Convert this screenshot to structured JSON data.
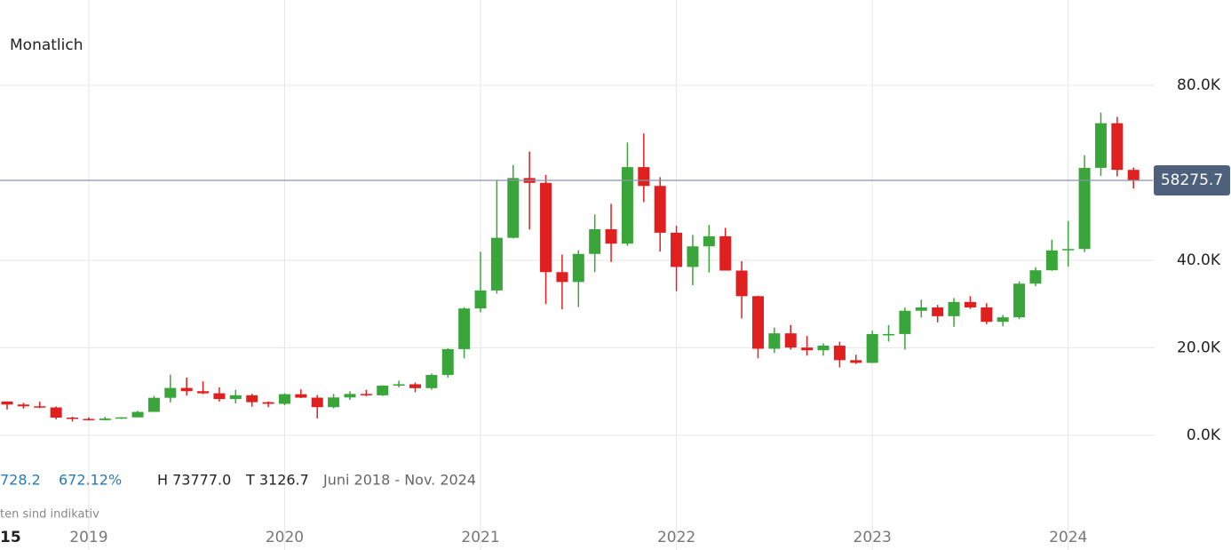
{
  "chart_data": {
    "type": "candlestick",
    "title": "Monatlich",
    "categories": [
      null,
      null,
      null,
      null,
      null,
      "2019",
      null,
      null,
      null,
      null,
      null,
      null,
      null,
      null,
      null,
      null,
      null,
      "2020",
      null,
      null,
      null,
      null,
      null,
      null,
      null,
      null,
      null,
      null,
      null,
      "2021",
      null,
      null,
      null,
      null,
      null,
      null,
      null,
      null,
      null,
      null,
      null,
      "2022",
      null,
      null,
      null,
      null,
      null,
      null,
      null,
      null,
      null,
      null,
      null,
      "2023",
      null,
      null,
      null,
      null,
      null,
      null,
      null,
      null,
      null,
      null,
      null,
      "2024",
      null,
      null,
      null,
      null
    ],
    "open": [
      7730,
      7030,
      6630,
      6370,
      4040,
      3740,
      3460,
      3820,
      4100,
      5350,
      8570,
      10820,
      10080,
      9600,
      8290,
      9150,
      7570,
      7190,
      9390,
      8600,
      6430,
      8650,
      9450,
      9140,
      11350,
      11660,
      10780,
      13800,
      19700,
      28990,
      33110,
      45140,
      58800,
      57700,
      37300,
      35040,
      41460,
      47100,
      43800,
      61300,
      57000,
      46300,
      38480,
      43190,
      45500,
      37650,
      31800,
      19780,
      23300,
      20050,
      19430,
      20490,
      17170,
      16550,
      23140,
      23150,
      28470,
      29230,
      27220,
      30480,
      29230,
      25930,
      26960,
      34660,
      37720,
      42270,
      42580,
      61130,
      71330,
      60670
    ],
    "high": [
      7750,
      7400,
      7680,
      6600,
      4250,
      4110,
      4200,
      4140,
      5600,
      9000,
      13880,
      13200,
      12330,
      10950,
      10370,
      9500,
      7750,
      9580,
      10500,
      9200,
      9460,
      10070,
      10390,
      11440,
      12480,
      12070,
      14100,
      19900,
      29300,
      41950,
      58350,
      61780,
      64850,
      59500,
      41300,
      42300,
      50500,
      52900,
      66930,
      69000,
      59000,
      47900,
      45800,
      48100,
      47400,
      39800,
      31900,
      24600,
      25200,
      22700,
      21000,
      21400,
      18400,
      23900,
      25200,
      29200,
      31000,
      29800,
      31400,
      31800,
      30200,
      27500,
      35200,
      38400,
      44700,
      48970,
      64000,
      73777,
      72800,
      61200
    ],
    "low": [
      5880,
      6100,
      6200,
      3650,
      3126.7,
      3350,
      3390,
      3730,
      4100,
      5350,
      7500,
      9070,
      9400,
      7720,
      7300,
      6520,
      6430,
      6870,
      8500,
      3850,
      6150,
      8100,
      8900,
      8990,
      10950,
      9850,
      10400,
      13200,
      17600,
      28130,
      32380,
      45000,
      47050,
      30000,
      28800,
      29300,
      37300,
      39600,
      43300,
      53300,
      42000,
      32950,
      34300,
      37200,
      37700,
      26700,
      17600,
      18800,
      19600,
      18200,
      18200,
      15500,
      16300,
      16500,
      21400,
      19600,
      26950,
      25800,
      24800,
      28900,
      25400,
      24900,
      26550,
      34100,
      37600,
      38550,
      41900,
      59300,
      59200,
      56400
    ],
    "close": [
      7030,
      6630,
      6370,
      4040,
      3740,
      3460,
      3820,
      4100,
      5350,
      8570,
      10820,
      10080,
      9600,
      8290,
      9150,
      7570,
      7190,
      9390,
      8600,
      6430,
      8650,
      9450,
      9140,
      11350,
      11660,
      10780,
      13800,
      19700,
      28990,
      33110,
      45140,
      58800,
      57700,
      37300,
      35040,
      41460,
      47100,
      43800,
      61300,
      57000,
      46300,
      38480,
      43190,
      45500,
      37650,
      31800,
      19780,
      23300,
      20050,
      19430,
      20490,
      17170,
      16550,
      23140,
      23150,
      28470,
      29230,
      27220,
      30480,
      29230,
      25930,
      26960,
      34660,
      37720,
      42270,
      42580,
      61130,
      71330,
      60670,
      58300
    ],
    "up_color": "#3aa53a",
    "down_color": "#e01f1f",
    "ylim": [
      -18300,
      99500
    ],
    "yticks": [
      {
        "value": 0,
        "label": "0.0K"
      },
      {
        "value": 20000,
        "label": "20.0K"
      },
      {
        "value": 40000,
        "label": "40.0K"
      },
      {
        "value": 80000,
        "label": "80.0K"
      }
    ],
    "grid": true,
    "price_line": 58275.7,
    "stats": [
      "728.2",
      "672.12%",
      "H 73777.0",
      "T 3126.7",
      "Juni 2018 - Nov. 2024"
    ],
    "note": "ten sind indikativ",
    "edge_label": "15"
  }
}
